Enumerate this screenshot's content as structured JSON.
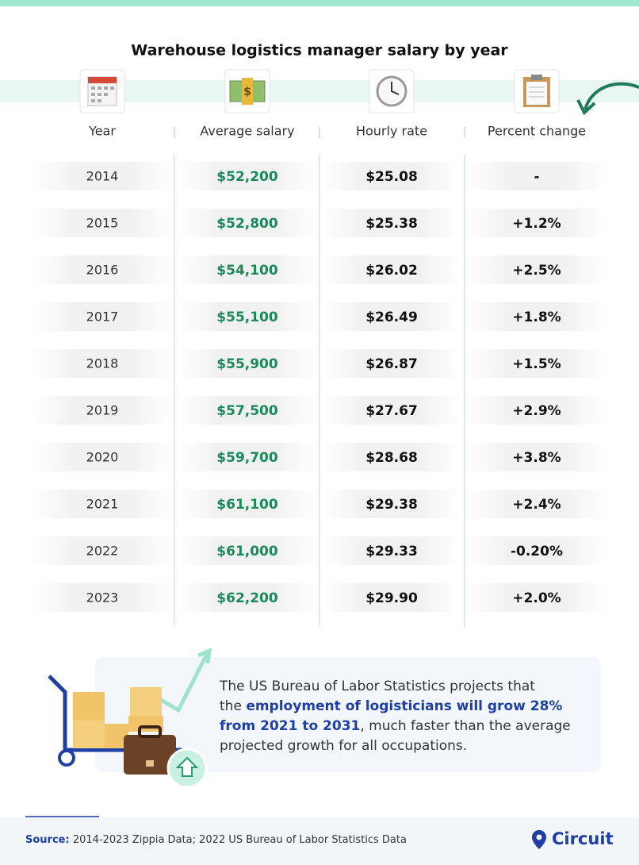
{
  "title": "Warehouse logistics manager salary by year",
  "table": {
    "headers": [
      "Year",
      "Average salary",
      "Hourly rate",
      "Percent change"
    ],
    "rows": [
      [
        "2014",
        "$52,200",
        "$25.08",
        "-"
      ],
      [
        "2015",
        "$52,800",
        "$25.38",
        "+1.2%"
      ],
      [
        "2016",
        "$54,100",
        "$26.02",
        "+2.5%"
      ],
      [
        "2017",
        "$55,100",
        "$26.49",
        "+1.8%"
      ],
      [
        "2018",
        "$55,900",
        "$26.87",
        "+1.5%"
      ],
      [
        "2019",
        "$57,500",
        "$27.67",
        "+2.9%"
      ],
      [
        "2020",
        "$59,700",
        "$28.68",
        "+3.8%"
      ],
      [
        "2021",
        "$61,100",
        "$29.38",
        "+2.4%"
      ],
      [
        "2022",
        "$61,000",
        "$29.33",
        "-0.20%"
      ],
      [
        "2023",
        "$62,200",
        "$29.90",
        "+2.0%"
      ]
    ]
  },
  "note": {
    "lines": [
      [
        "The US Bureau of Labor Statistics projects that"
      ],
      [
        "the ",
        "employment of logisticians will grow 28%"
      ],
      [
        "from 2021 to 2031",
        ", much faster than the average"
      ],
      [
        "projected growth for all occupations."
      ]
    ]
  },
  "source": {
    "label": "Source:",
    "text": " 2014-2023 Zippia Data; 2022 US Bureau of Labor Statistics Data"
  },
  "logo": "Circuit"
}
